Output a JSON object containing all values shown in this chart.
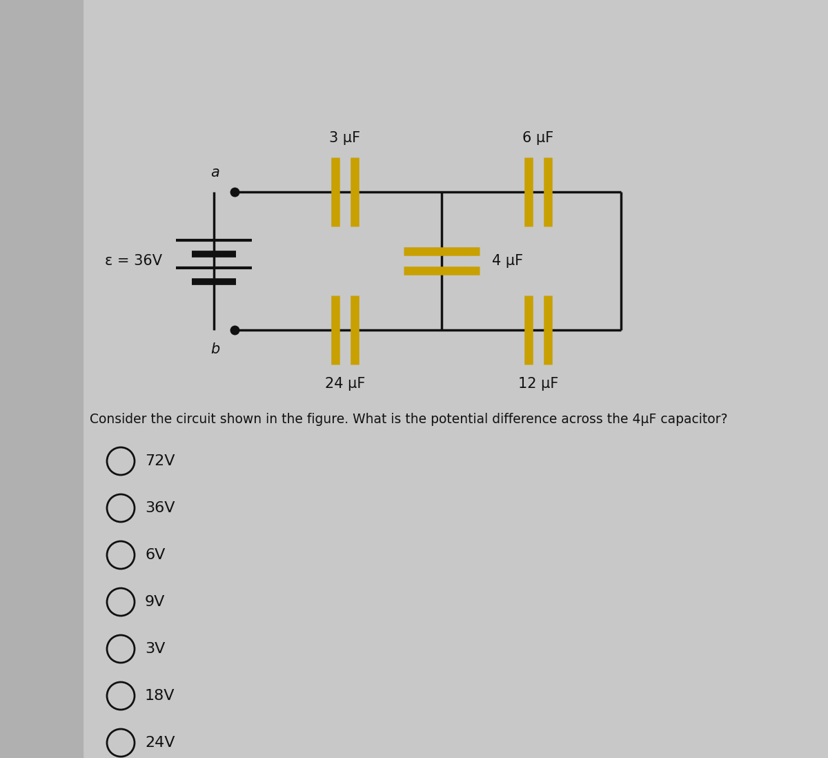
{
  "bg_color": "#c8c8c8",
  "bg_color_left": "#b0b0b0",
  "circuit": {
    "battery_label": "ε = 36V",
    "node_a_label": "a",
    "node_b_label": "b",
    "cap_labels": {
      "top_left": "3 μF",
      "top_right": "6 μF",
      "middle": "4 μF",
      "bottom_left": "24 μF",
      "bottom_right": "12 μF"
    }
  },
  "question": "Consider the circuit shown in the figure. What is the potential difference across the 4μF capacitor?",
  "choices": [
    "72V",
    "36V",
    "6V",
    "9V",
    "3V",
    "18V",
    "24V"
  ],
  "cap_color": "#c8a000",
  "wire_color": "#111111",
  "text_color": "#111111",
  "question_fontsize": 13.5,
  "choice_fontsize": 16,
  "label_fontsize": 15
}
